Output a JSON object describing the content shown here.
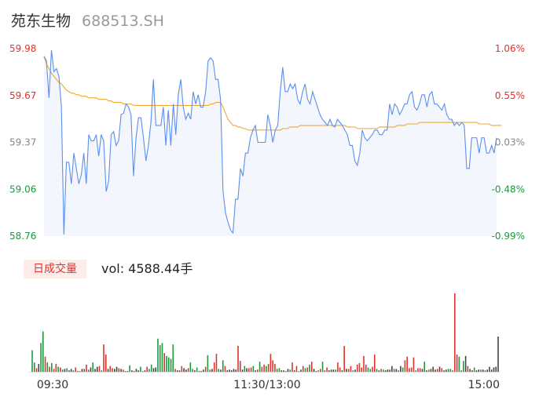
{
  "header": {
    "name": "苑东生物",
    "code": "688513.SH"
  },
  "volume_panel": {
    "badge": "日成交量",
    "readout": "vol: 4588.44手"
  },
  "colors": {
    "price_line": "#5b8ff0",
    "avg_line": "#f0a830",
    "up": "#e0332b",
    "down": "#1a9a3c",
    "neutral": "#444444",
    "area_fill": "#f3f6fd"
  },
  "chart_data": [
    {
      "type": "line",
      "title": "",
      "price_axis": {
        "ylim": [
          58.76,
          59.98
        ],
        "tick_labels": [
          "59.98",
          "59.67",
          "59.37",
          "59.06",
          "58.76"
        ]
      },
      "percent_axis": {
        "tick_labels": [
          "1.06%",
          "0.55%",
          "0.03%",
          "-0.48%",
          "-0.99%"
        ]
      },
      "x_tick_labels": [
        "09:30",
        "11:30/13:00",
        "15:00"
      ],
      "series": [
        {
          "values": [
            59.93,
            59.9,
            59.66,
            59.97,
            59.83,
            59.85,
            59.8,
            59.6,
            58.77,
            59.24,
            59.24,
            59.1,
            59.3,
            59.2,
            59.1,
            59.16,
            59.3,
            59.1,
            59.42,
            59.38,
            59.38,
            59.42,
            59.28,
            59.42,
            59.38,
            59.05,
            59.12,
            59.42,
            59.44,
            59.35,
            59.38,
            59.55,
            59.56,
            59.62,
            59.6,
            59.55,
            59.15,
            59.4,
            59.53,
            59.53,
            59.4,
            59.25,
            59.35,
            59.5,
            59.78,
            59.48,
            59.48,
            59.48,
            59.6,
            59.35,
            59.58,
            59.35,
            59.62,
            59.42,
            59.68,
            59.78,
            59.6,
            59.52,
            59.56,
            59.52,
            59.7,
            59.62,
            59.68,
            59.6,
            59.6,
            59.7,
            59.9,
            59.92,
            59.9,
            59.78,
            59.78,
            59.65,
            59.05,
            58.91,
            58.85,
            58.8,
            58.78,
            59.0,
            59.0,
            59.2,
            59.15,
            59.3,
            59.3,
            59.4,
            59.45,
            59.48,
            59.37,
            59.37,
            59.37,
            59.37,
            59.55,
            59.48,
            59.37,
            59.45,
            59.48,
            59.7,
            59.86,
            59.7,
            59.7,
            59.75,
            59.72,
            59.75,
            59.65,
            59.62,
            59.7,
            59.75,
            59.65,
            59.62,
            59.7,
            59.65,
            59.6,
            59.55,
            59.52,
            59.5,
            59.48,
            59.52,
            59.48,
            59.47,
            59.52,
            59.5,
            59.48,
            59.45,
            59.42,
            59.35,
            59.35,
            59.25,
            59.22,
            59.3,
            59.45,
            59.4,
            59.38,
            59.4,
            59.42,
            59.45,
            59.45,
            59.42,
            59.42,
            59.45,
            59.45,
            59.62,
            59.55,
            59.62,
            59.6,
            59.55,
            59.58,
            59.62,
            59.62,
            59.68,
            59.7,
            59.6,
            59.58,
            59.62,
            59.68,
            59.68,
            59.6,
            59.68,
            59.7,
            59.62,
            59.62,
            59.6,
            59.58,
            59.62,
            59.55,
            59.52,
            59.52,
            59.48,
            59.5,
            59.48,
            59.5,
            59.48,
            59.2,
            59.2,
            59.4,
            59.4,
            59.4,
            59.3,
            59.4,
            59.4,
            59.3,
            59.3,
            59.35,
            59.3,
            59.4
          ]
        },
        {
          "values": [
            59.93,
            59.88,
            59.85,
            59.82,
            59.8,
            59.78,
            59.76,
            59.75,
            59.73,
            59.71,
            59.7,
            59.69,
            59.69,
            59.68,
            59.68,
            59.67,
            59.67,
            59.67,
            59.66,
            59.66,
            59.66,
            59.66,
            59.65,
            59.65,
            59.65,
            59.65,
            59.64,
            59.64,
            59.63,
            59.63,
            59.63,
            59.63,
            59.62,
            59.62,
            59.62,
            59.62,
            59.61,
            59.61,
            59.61,
            59.61,
            59.61,
            59.61,
            59.61,
            59.61,
            59.61,
            59.61,
            59.61,
            59.61,
            59.61,
            59.61,
            59.61,
            59.61,
            59.61,
            59.61,
            59.61,
            59.61,
            59.61,
            59.61,
            59.61,
            59.61,
            59.61,
            59.61,
            59.61,
            59.61,
            59.61,
            59.61,
            59.61,
            59.62,
            59.62,
            59.63,
            59.63,
            59.63,
            59.6,
            59.56,
            59.52,
            59.5,
            59.48,
            59.48,
            59.47,
            59.47,
            59.46,
            59.46,
            59.45,
            59.45,
            59.45,
            59.45,
            59.45,
            59.45,
            59.45,
            59.45,
            59.45,
            59.45,
            59.45,
            59.45,
            59.45,
            59.45,
            59.46,
            59.46,
            59.46,
            59.47,
            59.47,
            59.47,
            59.47,
            59.48,
            59.48,
            59.48,
            59.48,
            59.48,
            59.48,
            59.48,
            59.48,
            59.48,
            59.48,
            59.48,
            59.48,
            59.48,
            59.48,
            59.48,
            59.48,
            59.48,
            59.48,
            59.48,
            59.47,
            59.47,
            59.47,
            59.47,
            59.46,
            59.46,
            59.46,
            59.46,
            59.46,
            59.46,
            59.46,
            59.46,
            59.46,
            59.47,
            59.47,
            59.47,
            59.47,
            59.47,
            59.47,
            59.47,
            59.48,
            59.48,
            59.48,
            59.48,
            59.49,
            59.49,
            59.49,
            59.49,
            59.49,
            59.5,
            59.5,
            59.5,
            59.5,
            59.5,
            59.5,
            59.5,
            59.5,
            59.5,
            59.5,
            59.5,
            59.5,
            59.5,
            59.5,
            59.5,
            59.5,
            59.5,
            59.5,
            59.5,
            59.5,
            59.5,
            59.5,
            59.5,
            59.5,
            59.49,
            59.49,
            59.49,
            59.49,
            59.49,
            59.48,
            59.48,
            59.48,
            59.48,
            59.48
          ]
        }
      ]
    },
    {
      "type": "bar",
      "title": "",
      "x_tick_labels": [
        "09:30",
        "11:30/13:00",
        "15:00"
      ],
      "series": [
        {
          "values": [
            30,
            13,
            5,
            11,
            40,
            56,
            21,
            13,
            7,
            12,
            4,
            11,
            7,
            6,
            3,
            4,
            5,
            2,
            4,
            2,
            6,
            1,
            1,
            4,
            4,
            10,
            3,
            6,
            13,
            4,
            7,
            8,
            2,
            38,
            24,
            4,
            8,
            5,
            4,
            7,
            5,
            4,
            3,
            1,
            1,
            9,
            2,
            1,
            4,
            2,
            7,
            1,
            2,
            7,
            4,
            10,
            5,
            6,
            46,
            37,
            40,
            26,
            22,
            20,
            18,
            38,
            4,
            2,
            2,
            8,
            5,
            3,
            5,
            13,
            4,
            2,
            6,
            1,
            1,
            3,
            7,
            23,
            3,
            4,
            13,
            25,
            4,
            3,
            16,
            8,
            2,
            3,
            2,
            4,
            3,
            36,
            15,
            3,
            8,
            5,
            5,
            6,
            8,
            2,
            3,
            14,
            7,
            10,
            8,
            11,
            25,
            16,
            11,
            4,
            5,
            2,
            2,
            1,
            4,
            3,
            13,
            2,
            8,
            1,
            3,
            8,
            5,
            6,
            10,
            14,
            4,
            1,
            2,
            4,
            14,
            2,
            6,
            2,
            3,
            3,
            3,
            13,
            6,
            2,
            36,
            4,
            4,
            8,
            2,
            3,
            10,
            12,
            6,
            22,
            10,
            6,
            4,
            7,
            24,
            4,
            2,
            4,
            3,
            2,
            3,
            3,
            8,
            4,
            4,
            2,
            8,
            6,
            16,
            21,
            5,
            6,
            20,
            2,
            5,
            5,
            4,
            14,
            2,
            3,
            4,
            7,
            3,
            4,
            7,
            5,
            2,
            3,
            4,
            4,
            2,
            109,
            24,
            21,
            2,
            15,
            22,
            8,
            4,
            2,
            6,
            2,
            3,
            3,
            3,
            2,
            3,
            7,
            3,
            6,
            7,
            49
          ],
          "directions": [
            "down",
            "down",
            "up",
            "neutral",
            "down",
            "down",
            "up",
            "down",
            "up",
            "down",
            "up",
            "up",
            "down",
            "up",
            "down",
            "neutral",
            "down",
            "neutral",
            "neutral",
            "down",
            "up",
            "neutral",
            "down",
            "neutral",
            "up",
            "up",
            "down",
            "neutral",
            "down",
            "neutral",
            "neutral",
            "up",
            "down",
            "up",
            "up",
            "neutral",
            "up",
            "up",
            "neutral",
            "neutral",
            "up",
            "neutral",
            "up",
            "neutral",
            "neutral",
            "down",
            "neutral",
            "neutral",
            "neutral",
            "neutral",
            "down",
            "down",
            "neutral",
            "up",
            "down",
            "down",
            "neutral",
            "neutral",
            "down",
            "down",
            "down",
            "up",
            "down",
            "down",
            "down",
            "down",
            "up",
            "neutral",
            "neutral",
            "up",
            "neutral",
            "neutral",
            "up",
            "down",
            "down",
            "neutral",
            "down",
            "neutral",
            "neutral",
            "neutral",
            "up",
            "down",
            "up",
            "neutral",
            "up",
            "up",
            "down",
            "neutral",
            "down",
            "up",
            "neutral",
            "neutral",
            "neutral",
            "neutral",
            "neutral",
            "up",
            "up",
            "neutral",
            "down",
            "neutral",
            "up",
            "up",
            "down",
            "neutral",
            "up",
            "down",
            "up",
            "up",
            "down",
            "up",
            "up",
            "up",
            "up",
            "down",
            "down",
            "neutral",
            "neutral",
            "neutral",
            "neutral",
            "down",
            "up",
            "neutral",
            "up",
            "down",
            "neutral",
            "up",
            "down",
            "up",
            "down",
            "up",
            "neutral",
            "neutral",
            "up",
            "up",
            "down",
            "up",
            "up",
            "neutral",
            "neutral",
            "neutral",
            "down",
            "up",
            "up",
            "neutral",
            "up",
            "neutral",
            "up",
            "up",
            "down",
            "neutral",
            "up",
            "up",
            "up",
            "up",
            "up",
            "down",
            "down",
            "up",
            "up",
            "down",
            "neutral",
            "up",
            "down",
            "neutral",
            "neutral",
            "neutral",
            "neutral",
            "up",
            "neutral",
            "down",
            "neutral",
            "down",
            "up",
            "up",
            "up",
            "up",
            "up",
            "down",
            "up",
            "up",
            "neutral",
            "down",
            "neutral",
            "up",
            "neutral",
            "neutral",
            "neutral",
            "up",
            "neutral",
            "up",
            "neutral",
            "neutral",
            "down",
            "down",
            "up",
            "up",
            "up",
            "down",
            "down",
            "down",
            "neutral",
            "up",
            "neutral",
            "neutral",
            "down",
            "neutral",
            "neutral",
            "down",
            "neutral",
            "up"
          ]
        }
      ]
    }
  ]
}
